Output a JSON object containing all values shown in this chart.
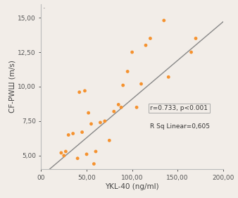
{
  "title": "",
  "xlabel": "YKL-40 (ng/ml)",
  "ylabel": "CF-PWШ (m/s)",
  "xlim": [
    0,
    200
  ],
  "ylim": [
    4.0,
    16.0
  ],
  "xticks": [
    0,
    50,
    100,
    150,
    200
  ],
  "xtick_labels": [
    "00",
    "50,00",
    "100,00",
    "150,00",
    "200,00"
  ],
  "yticks": [
    5.0,
    7.5,
    10.0,
    12.5,
    15.0
  ],
  "ytick_labels": [
    "5,00",
    "7,50",
    "10,00",
    "12,50",
    "15,00"
  ],
  "scatter_x": [
    22,
    25,
    27,
    30,
    35,
    40,
    42,
    45,
    48,
    50,
    52,
    55,
    58,
    60,
    65,
    70,
    75,
    80,
    85,
    88,
    90,
    95,
    100,
    105,
    110,
    115,
    120,
    135,
    140,
    165,
    170
  ],
  "scatter_y": [
    5.2,
    5.0,
    5.3,
    6.5,
    6.6,
    4.8,
    9.6,
    6.7,
    9.7,
    5.1,
    8.1,
    7.3,
    4.4,
    5.3,
    7.4,
    7.5,
    6.1,
    8.2,
    8.7,
    8.5,
    10.1,
    11.1,
    12.5,
    8.5,
    10.2,
    13.0,
    13.5,
    14.8,
    10.7,
    12.5,
    13.5
  ],
  "dot_color": "#f5922f",
  "line_color": "#888888",
  "annotation_box_text": "r=0.733, p<0.001",
  "annotation_text2": "R Sq Linear=0,605",
  "background_color": "#f2ede8",
  "regression_slope": 0.056,
  "regression_intercept": 3.5,
  "dot_size": 12,
  "spine_color": "#bbbbbb",
  "tick_color": "#555555",
  "tick_fontsize": 6.5,
  "label_fontsize": 7.5,
  "annot_fontsize": 6.5
}
